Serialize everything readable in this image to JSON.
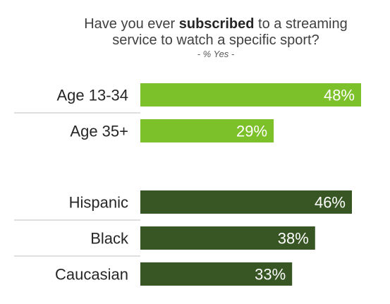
{
  "chart_data": {
    "type": "bar",
    "orientation": "horizontal",
    "title": {
      "line1_prefix": "Have you ever ",
      "line1_bold": "subscribed",
      "line1_suffix": " to a streaming",
      "line2": "service to watch a specific sport?"
    },
    "subtitle": "- % Yes -",
    "value_suffix": "%",
    "xlim": [
      0,
      48
    ],
    "grid": false,
    "legend": "none",
    "groups": [
      {
        "name": "age",
        "color": "#7dc12a",
        "categories": [
          "Age 13-34",
          "Age 35+"
        ],
        "values": [
          48,
          29
        ]
      },
      {
        "name": "ethnicity",
        "color": "#375623",
        "categories": [
          "Hispanic",
          "Black",
          "Caucasian"
        ],
        "values": [
          46,
          38,
          33
        ]
      }
    ]
  }
}
